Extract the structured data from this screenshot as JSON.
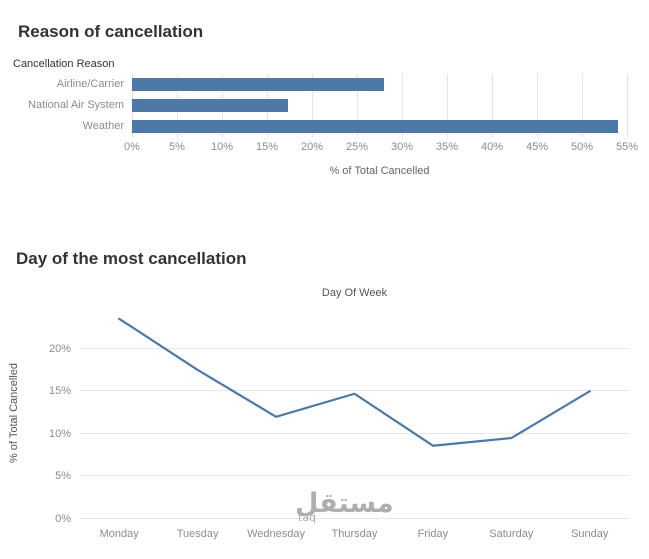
{
  "colors": {
    "series": "#4e79a7",
    "grid": "#e7e7e7",
    "axis_text": "#8c8c8c",
    "title_text": "#333333"
  },
  "chart_data": [
    {
      "type": "bar",
      "orientation": "horizontal",
      "title": "Reason of cancellation",
      "row_header": "Cancellation Reason",
      "categories": [
        "Airline/Carrier",
        "National Air System",
        "Weather"
      ],
      "values": [
        28.0,
        17.3,
        54.0
      ],
      "xlabel": "% of Total Cancelled",
      "xlim": [
        0,
        55
      ],
      "xticks": [
        0,
        5,
        10,
        15,
        20,
        25,
        30,
        35,
        40,
        45,
        50,
        55
      ],
      "tick_suffix": "%",
      "grid": true,
      "legend": "none"
    },
    {
      "type": "line",
      "title": "Day of the most cancellation",
      "top_axis_label": "Day Of Week",
      "categories": [
        "Monday",
        "Tuesday",
        "Wednesday",
        "Thursday",
        "Friday",
        "Saturday",
        "Sunday"
      ],
      "values": [
        23.5,
        17.5,
        12.0,
        14.7,
        8.6,
        9.5,
        15.0
      ],
      "ylabel": "% of Total Cancelled",
      "ylim": [
        0,
        25
      ],
      "yticks": [
        0,
        5,
        10,
        15,
        20
      ],
      "tick_suffix": "%",
      "grid": true,
      "legend": "none"
    }
  ],
  "watermark": {
    "text": "مستقل",
    "subtext": "taq"
  }
}
